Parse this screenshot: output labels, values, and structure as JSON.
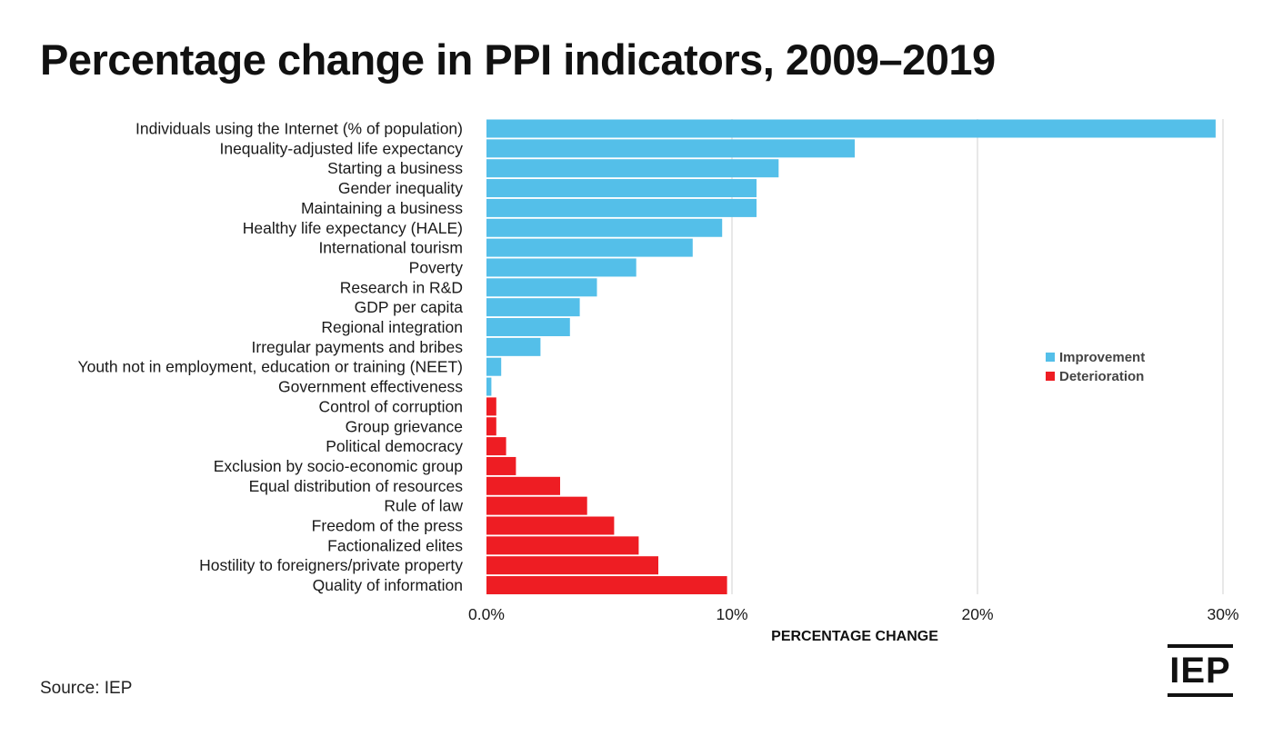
{
  "title": "Percentage change in PPI indicators, 2009–2019",
  "source": "Source: IEP",
  "logo": "IEP",
  "colors": {
    "improvement": "#54bfe9",
    "deterioration": "#ee1d23",
    "grid": "#d0d0d0"
  },
  "chart_data": {
    "type": "bar",
    "orientation": "horizontal",
    "title": "Percentage change in PPI indicators, 2009–2019",
    "xlabel": "PERCENTAGE CHANGE",
    "ylabel": "",
    "xlim": [
      0,
      30
    ],
    "x_ticks": [
      0,
      10,
      20,
      30
    ],
    "x_tick_labels": [
      "0.0%",
      "10%",
      "20%",
      "30%"
    ],
    "grid": true,
    "legend_position": "right",
    "legend": [
      {
        "name": "Improvement",
        "color": "#54bfe9"
      },
      {
        "name": "Deterioration",
        "color": "#ee1d23"
      }
    ],
    "categories": [
      "Individuals using the Internet (% of population)",
      "Inequality-adjusted life expectancy",
      "Starting a business",
      "Gender inequality",
      "Maintaining a business",
      "Healthy life expectancy (HALE)",
      "International tourism",
      "Poverty",
      "Research in R&D",
      "GDP per capita",
      "Regional integration",
      "Irregular payments and bribes",
      "Youth not in employment, education or training (NEET)",
      "Government effectiveness",
      "Control of corruption",
      "Group grievance",
      "Political democracy",
      "Exclusion by socio-economic group",
      "Equal distribution of resources",
      "Rule of law",
      "Freedom of the press",
      "Factionalized elites",
      "Hostility to foreigners/private property",
      "Quality of information"
    ],
    "values": [
      29.7,
      15.0,
      11.9,
      11.0,
      11.0,
      9.6,
      8.4,
      6.1,
      4.5,
      3.8,
      3.4,
      2.2,
      0.6,
      0.2,
      0.4,
      0.4,
      0.8,
      1.2,
      3.0,
      4.1,
      5.2,
      6.2,
      7.0,
      9.8
    ],
    "status": [
      "Improvement",
      "Improvement",
      "Improvement",
      "Improvement",
      "Improvement",
      "Improvement",
      "Improvement",
      "Improvement",
      "Improvement",
      "Improvement",
      "Improvement",
      "Improvement",
      "Improvement",
      "Improvement",
      "Deterioration",
      "Deterioration",
      "Deterioration",
      "Deterioration",
      "Deterioration",
      "Deterioration",
      "Deterioration",
      "Deterioration",
      "Deterioration",
      "Deterioration"
    ]
  }
}
